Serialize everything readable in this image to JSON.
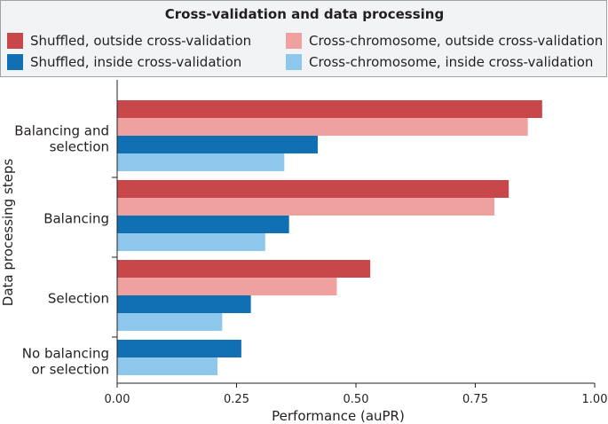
{
  "legend": {
    "title": "Cross-validation and data processing",
    "items": [
      {
        "label": "Shuffled, outside cross-validation",
        "color": "#c8474b"
      },
      {
        "label": "Cross-chromosome, outside cross-validation",
        "color": "#efa1a0"
      },
      {
        "label": "Shuffled, inside cross-validation",
        "color": "#1170b4"
      },
      {
        "label": "Cross-chromosome, inside cross-validation",
        "color": "#8dc8ec"
      }
    ]
  },
  "chart_data": {
    "type": "bar",
    "orientation": "horizontal",
    "xlabel": "Performance (auPR)",
    "ylabel": "Data processing steps",
    "xlim": [
      0,
      1.0
    ],
    "x_ticks": [
      "0.00",
      "0.25",
      "0.50",
      "0.75",
      "1.00"
    ],
    "grid": false,
    "categories": [
      {
        "lines": [
          "Balancing and",
          "selection"
        ]
      },
      {
        "lines": [
          "Balancing"
        ]
      },
      {
        "lines": [
          "Selection"
        ]
      },
      {
        "lines": [
          "No balancing",
          "or selection"
        ]
      }
    ],
    "series": [
      {
        "name": "Shuffled, outside cross-validation",
        "color": "#c8474b",
        "values": [
          0.89,
          0.82,
          0.53,
          null
        ]
      },
      {
        "name": "Cross-chromosome, outside cross-validation",
        "color": "#efa1a0",
        "values": [
          0.86,
          0.79,
          0.46,
          null
        ]
      },
      {
        "name": "Shuffled, inside cross-validation",
        "color": "#1170b4",
        "values": [
          0.42,
          0.36,
          0.28,
          0.26
        ]
      },
      {
        "name": "Cross-chromosome, inside cross-validation",
        "color": "#8dc8ec",
        "values": [
          0.35,
          0.31,
          0.22,
          0.21
        ]
      }
    ]
  }
}
